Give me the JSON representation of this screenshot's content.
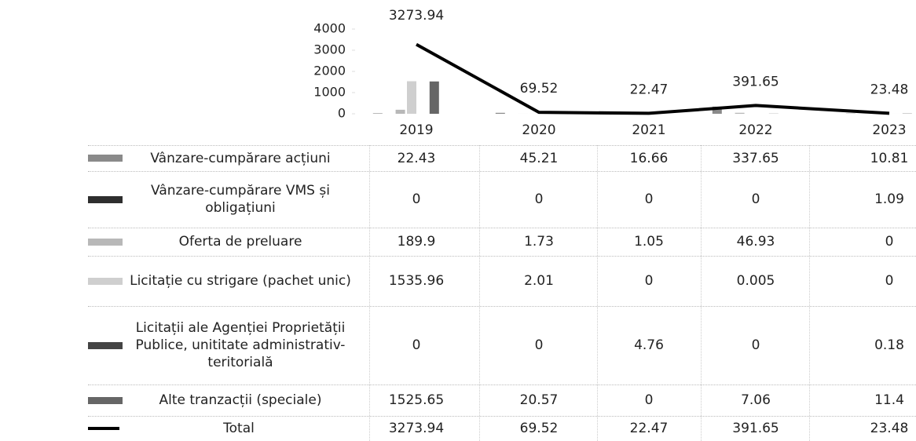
{
  "chart_data": {
    "type": "bar-line-table",
    "categories": [
      "2019",
      "2020",
      "2021",
      "2022",
      "2023"
    ],
    "ylim": [
      0,
      4000
    ],
    "yticks": [
      0,
      1000,
      2000,
      3000,
      4000
    ],
    "series": [
      {
        "name": "Vânzare-cumpărare acțiuni",
        "color": "#8a8a8a",
        "type": "bar",
        "values": [
          22.43,
          45.21,
          16.66,
          337.65,
          10.81
        ]
      },
      {
        "name": "Vânzare-cumpărare VMS și obligațiuni",
        "color": "#2e2e2e",
        "type": "bar",
        "values": [
          0,
          0,
          0,
          0,
          1.09
        ]
      },
      {
        "name": "Oferta de preluare",
        "color": "#b8b8b8",
        "type": "bar",
        "values": [
          189.9,
          1.73,
          1.05,
          46.93,
          0
        ]
      },
      {
        "name": "Licitație cu strigare (pachet unic)",
        "color": "#cfcfcf",
        "type": "bar",
        "values": [
          1535.96,
          2.01,
          0,
          0.005,
          0
        ]
      },
      {
        "name": "Licitații ale Agenției Proprietății Publice, unititate administrativ-teritorială",
        "color": "#444444",
        "type": "bar",
        "values": [
          0,
          0,
          4.76,
          0,
          0.18
        ]
      },
      {
        "name": "Alte tranzacții (speciale)",
        "color": "#666666",
        "type": "bar",
        "values": [
          1525.65,
          20.57,
          0,
          7.06,
          11.4
        ]
      },
      {
        "name": "Total",
        "color": "#000000",
        "type": "line",
        "values": [
          3273.94,
          69.52,
          22.47,
          391.65,
          23.48
        ]
      }
    ]
  }
}
